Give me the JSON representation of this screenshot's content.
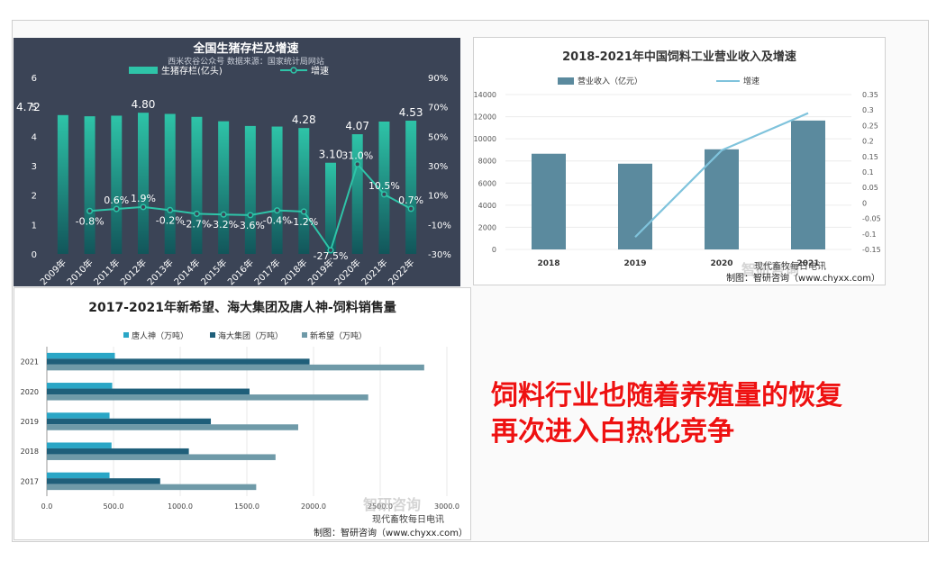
{
  "headline": {
    "line1": "饲料行业也随着养殖量的恢复",
    "line2": "再次进入白热化竞争"
  },
  "chart_data": [
    {
      "type": "bar",
      "title": "全国生猪存栏及增速",
      "subtitle": "西米农谷公众号 数据来源：国家统计局网站",
      "categories": [
        "2009年",
        "2010年",
        "2011年",
        "2012年",
        "2013年",
        "2014年",
        "2015年",
        "2016年",
        "2017年",
        "2018年",
        "2019年",
        "2020年",
        "2021年",
        "2022年"
      ],
      "series": [
        {
          "name": "生猪存栏(亿头)",
          "type": "bar",
          "values": [
            4.72,
            4.68,
            4.7,
            4.8,
            4.76,
            4.66,
            4.51,
            4.35,
            4.33,
            4.28,
            3.1,
            4.07,
            4.5,
            4.53
          ]
        },
        {
          "name": "增速",
          "type": "line",
          "values": [
            null,
            -0.8,
            0.6,
            1.9,
            -0.2,
            -2.7,
            -3.2,
            -3.6,
            -0.4,
            -1.2,
            -27.5,
            31.0,
            10.5,
            0.7
          ]
        }
      ],
      "bar_labels": [
        {
          "index": 0,
          "text": "4.72"
        },
        {
          "index": 3,
          "text": "4.80"
        },
        {
          "index": 9,
          "text": "4.28"
        },
        {
          "index": 10,
          "text": "3.10"
        },
        {
          "index": 11,
          "text": "4.07"
        },
        {
          "index": 13,
          "text": "4.53"
        }
      ],
      "line_labels": [
        "",
        "-0.8%",
        "0.6%",
        "1.9%",
        "-0.2%",
        "-2.7%",
        "-3.2%",
        "-3.6%",
        "-0.4%",
        "-1.2%",
        "-27.5%",
        "31.0%",
        "10.5%",
        "0.7%"
      ],
      "ylim": [
        0,
        6
      ],
      "yticks": [
        "0",
        "1",
        "2",
        "3",
        "4",
        "5",
        "6"
      ],
      "y2lim": [
        -30,
        90
      ],
      "y2ticks": [
        "-30%",
        "-10%",
        "10%",
        "30%",
        "50%",
        "70%",
        "90%"
      ],
      "colors": {
        "bg": "#3b4456",
        "bar_top": "#2ec4a8",
        "bar_bottom": "#12555a",
        "line": "#2ec4a8",
        "text": "#ffffff"
      }
    },
    {
      "type": "bar",
      "title": "2018-2021年中国饲料工业营业收入及增速",
      "categories": [
        "2018",
        "2019",
        "2020",
        "2021"
      ],
      "series": [
        {
          "name": "营业收入（亿元）",
          "type": "bar",
          "values": [
            8650,
            7750,
            9050,
            11650
          ]
        },
        {
          "name": "增速",
          "type": "line",
          "values": [
            null,
            -0.11,
            0.17,
            0.29
          ]
        }
      ],
      "ylim": [
        0,
        14000
      ],
      "yticks": [
        "0",
        "2000",
        "4000",
        "6000",
        "8000",
        "10000",
        "12000",
        "14000"
      ],
      "y2lim": [
        -0.15,
        0.35
      ],
      "y2ticks": [
        "-0.15",
        "-0.1",
        "-0.05",
        "0",
        "0.05",
        "0.1",
        "0.15",
        "0.2",
        "0.25",
        "0.3",
        "0.35"
      ],
      "source": "制图：智研咨询（www.chyxx.com）",
      "watermark": "智研咨询",
      "wechat": "现代畜牧每日电讯",
      "colors": {
        "bar": "#5b8a9e",
        "line": "#7fc3dc"
      }
    },
    {
      "type": "bar",
      "title": "2017-2021年新希望、海大集团及唐人神-饲料销售量",
      "categories": [
        "2017",
        "2018",
        "2019",
        "2020",
        "2021"
      ],
      "series": [
        {
          "name": "唐人神（万吨）",
          "values": [
            470,
            485,
            470,
            490,
            510
          ]
        },
        {
          "name": "海大集团（万吨）",
          "values": [
            850,
            1065,
            1230,
            1520,
            1970
          ]
        },
        {
          "name": "新希望（万吨）",
          "values": [
            1570,
            1715,
            1885,
            2410,
            2830
          ]
        }
      ],
      "xlim": [
        0,
        3000
      ],
      "xticks": [
        "0.0",
        "500.0",
        "1000.0",
        "1500.0",
        "2000.0",
        "2500.0",
        "3000.0"
      ],
      "source": "制图：智研咨询（www.chyxx.com）",
      "watermark": "智研咨询",
      "wechat": "现代畜牧每日电讯",
      "colors": {
        "s0": "#2aa6c6",
        "s1": "#1f5f7a",
        "s2": "#6f9aa8"
      }
    }
  ]
}
